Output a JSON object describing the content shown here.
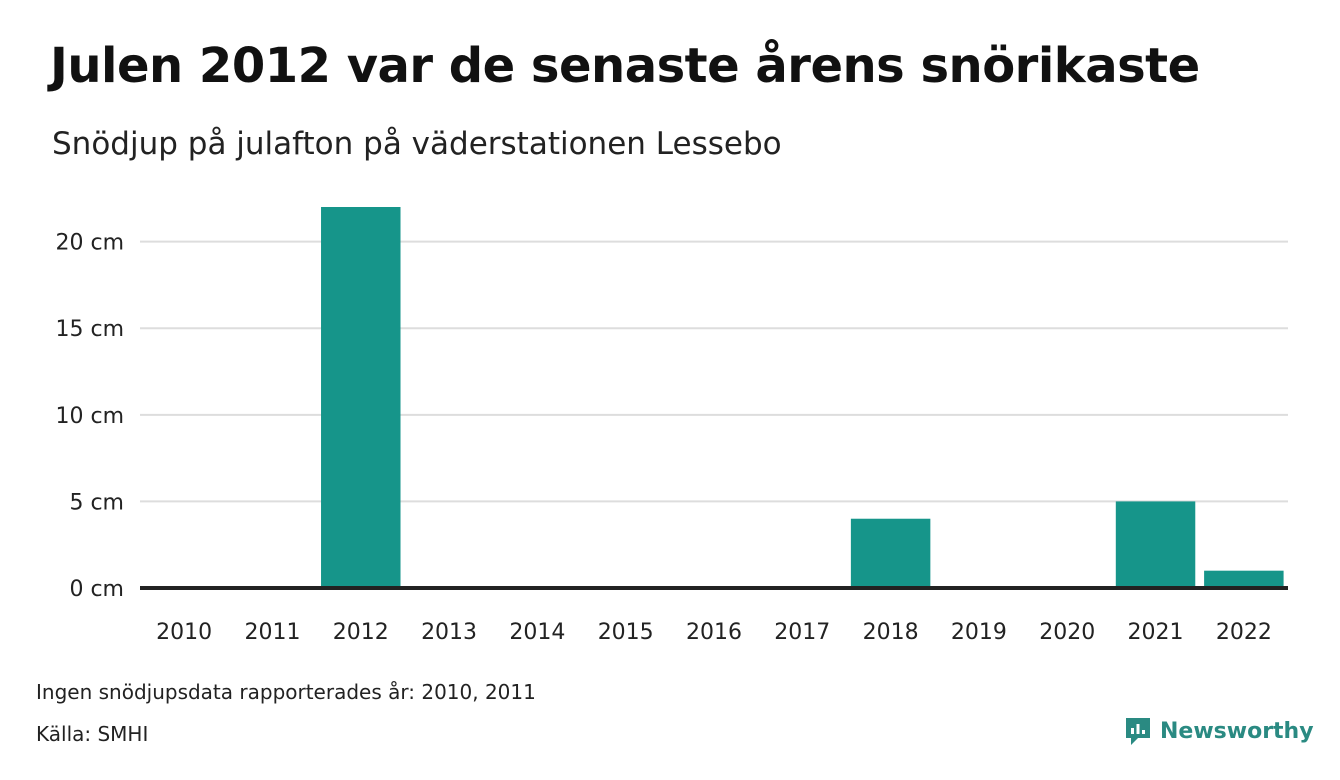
{
  "title": "Julen 2012 var de senaste årens snörikaste",
  "subtitle": "Snödjup på julafton på väderstationen Lessebo",
  "footnote": "Ingen snödjupsdata rapporterades år: 2010, 2011",
  "source": "Källa: SMHI",
  "brand": {
    "name": "Newsworthy",
    "icon": "newsworthy-logo-icon",
    "color": "#2a8a82"
  },
  "chart_data": {
    "type": "bar",
    "categories": [
      "2010",
      "2011",
      "2012",
      "2013",
      "2014",
      "2015",
      "2016",
      "2017",
      "2018",
      "2019",
      "2020",
      "2021",
      "2022"
    ],
    "values": [
      null,
      null,
      22,
      0,
      0,
      0,
      0,
      0,
      4,
      0,
      0,
      5,
      1
    ],
    "ylim": [
      0,
      22
    ],
    "yticks": [
      0,
      5,
      10,
      15,
      20
    ],
    "ytick_labels": [
      "0 cm",
      "5 cm",
      "10 cm",
      "15 cm",
      "20 cm"
    ],
    "unit": "cm",
    "grid": true,
    "bar_color": "#16958a",
    "baseline_color": "#222222",
    "grid_color": "#dddddd"
  }
}
